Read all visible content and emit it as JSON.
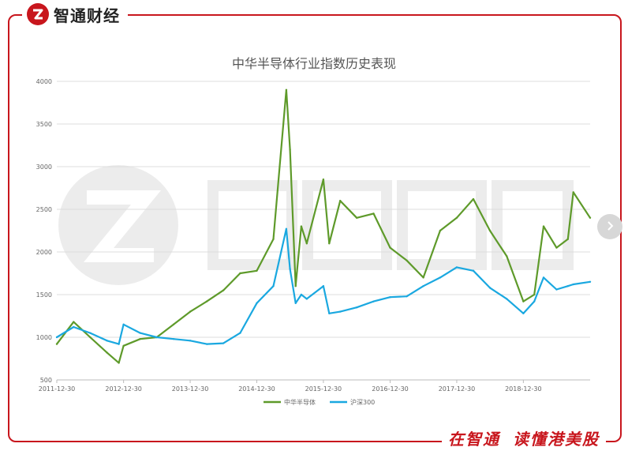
{
  "brand": {
    "name": "智通财经"
  },
  "slogans": [
    "在智通",
    "读懂港美股"
  ],
  "colors": {
    "brand_red": "#c8161d",
    "series1": "#5e9a2a",
    "series2": "#1aa8e0",
    "grid": "#dcdcdc"
  },
  "icons": {
    "next": "chevron-right-icon",
    "logo": "zhitong-logo-icon"
  },
  "chart_data": {
    "type": "line",
    "title": "中华半导体行业指数历史表现",
    "xlabel": "",
    "ylabel": "",
    "ylim": [
      500,
      4000
    ],
    "yticks": [
      "500",
      "1000",
      "1500",
      "2000",
      "2500",
      "3000",
      "3500",
      "4000"
    ],
    "xticks": [
      "2011-12-30",
      "2012-12-30",
      "2013-12-30",
      "2014-12-30",
      "2015-12-30",
      "2016-12-30",
      "2017-12-30",
      "2018-12-30"
    ],
    "xrange": [
      "2011-12-30",
      "2019-12-31"
    ],
    "legend_position": "bottom",
    "grid": true,
    "x": [
      "2011-12-30",
      "2012-03-31",
      "2012-06-30",
      "2012-09-30",
      "2012-12-04",
      "2012-12-30",
      "2013-03-31",
      "2013-06-30",
      "2013-09-30",
      "2013-12-30",
      "2014-03-31",
      "2014-06-30",
      "2014-09-30",
      "2014-12-30",
      "2015-03-31",
      "2015-06-10",
      "2015-06-30",
      "2015-07-31",
      "2015-08-31",
      "2015-09-30",
      "2015-12-30",
      "2016-01-31",
      "2016-03-31",
      "2016-06-30",
      "2016-09-30",
      "2016-12-30",
      "2017-03-31",
      "2017-06-30",
      "2017-09-30",
      "2017-12-30",
      "2018-03-31",
      "2018-06-30",
      "2018-09-30",
      "2018-12-30",
      "2019-02-28",
      "2019-04-20",
      "2019-06-30",
      "2019-08-31",
      "2019-09-30",
      "2019-12-31"
    ],
    "series": [
      {
        "name": "中华半导体",
        "values": [
          920,
          1180,
          1000,
          820,
          700,
          900,
          980,
          1000,
          1150,
          1300,
          1420,
          1550,
          1750,
          1780,
          2150,
          3900,
          3200,
          1600,
          2300,
          2100,
          2850,
          2100,
          2600,
          2400,
          2450,
          2050,
          1900,
          1700,
          2250,
          2400,
          2620,
          2250,
          1950,
          1420,
          1500,
          2300,
          2050,
          2150,
          2700,
          2400
        ]
      },
      {
        "name": "沪深300",
        "values": [
          1000,
          1120,
          1050,
          960,
          920,
          1150,
          1050,
          1000,
          980,
          960,
          920,
          930,
          1050,
          1400,
          1600,
          2270,
          1800,
          1400,
          1500,
          1450,
          1600,
          1280,
          1300,
          1350,
          1420,
          1470,
          1480,
          1600,
          1700,
          1820,
          1780,
          1580,
          1450,
          1280,
          1420,
          1700,
          1560,
          1600,
          1620,
          1650
        ]
      }
    ]
  }
}
